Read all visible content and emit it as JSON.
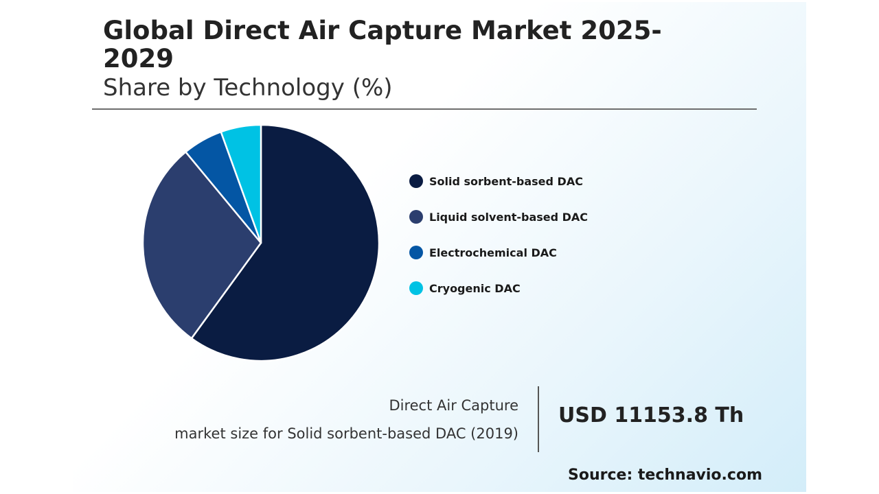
{
  "header": {
    "title": "Global Direct Air Capture Market 2025-2029",
    "subtitle": "Share by Technology (%)"
  },
  "chart_data": {
    "type": "pie",
    "categories": [
      "Solid sorbent-based DAC",
      "Liquid solvent-based DAC",
      "Electrochemical DAC",
      "Cryogenic DAC"
    ],
    "values": [
      60,
      29,
      5.5,
      5.5
    ],
    "colors": [
      "#0a1c42",
      "#2b3e6e",
      "#0456a4",
      "#00c2e4"
    ],
    "legend_position": "right"
  },
  "summary": {
    "caption_line1": "Direct Air Capture",
    "caption_line2": "market size for Solid sorbent-based DAC (2019)",
    "value": "USD 11153.8 Th"
  },
  "footer": {
    "source": "Source: technavio.com"
  }
}
